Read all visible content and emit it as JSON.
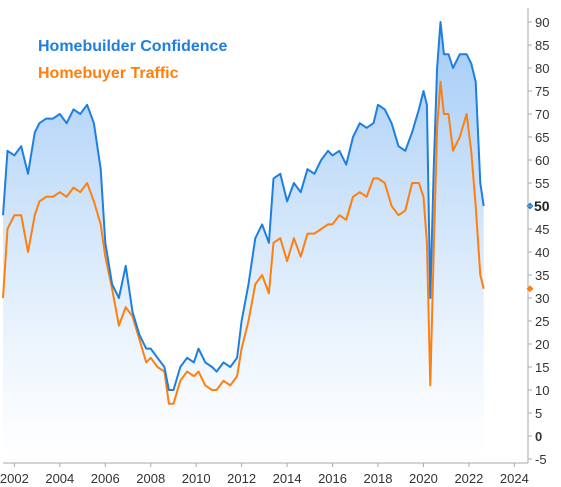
{
  "chart_data": {
    "type": "line",
    "title": "",
    "xlabel": "",
    "ylabel": "",
    "xlim": [
      2001.5,
      2024.6
    ],
    "ylim": [
      -5,
      90
    ],
    "x_ticks": [
      "2002",
      "2004",
      "2006",
      "2008",
      "2010",
      "2012",
      "2014",
      "2016",
      "2018",
      "2020",
      "2022",
      "2024"
    ],
    "y_ticks": [
      "90",
      "85",
      "80",
      "75",
      "70",
      "65",
      "60",
      "55",
      "50",
      "45",
      "40",
      "35",
      "30",
      "25",
      "20",
      "15",
      "10",
      "5",
      "0",
      "-5"
    ],
    "legend_position": "top-left",
    "series": [
      {
        "name": "Homebuilder Confidence",
        "color": "#1f7fe0",
        "last_value": "50",
        "x": [
          2001.5,
          2001.7,
          2002.0,
          2002.3,
          2002.6,
          2002.9,
          2003.1,
          2003.4,
          2003.7,
          2004.0,
          2004.3,
          2004.6,
          2004.9,
          2005.2,
          2005.5,
          2005.8,
          2006.0,
          2006.3,
          2006.6,
          2006.9,
          2007.2,
          2007.5,
          2007.8,
          2008.0,
          2008.3,
          2008.6,
          2008.8,
          2009.0,
          2009.3,
          2009.6,
          2009.9,
          2010.1,
          2010.4,
          2010.7,
          2010.9,
          2011.2,
          2011.5,
          2011.8,
          2012.0,
          2012.3,
          2012.6,
          2012.9,
          2013.2,
          2013.4,
          2013.7,
          2014.0,
          2014.3,
          2014.6,
          2014.9,
          2015.2,
          2015.5,
          2015.8,
          2016.0,
          2016.3,
          2016.6,
          2016.9,
          2017.2,
          2017.5,
          2017.8,
          2018.0,
          2018.3,
          2018.6,
          2018.9,
          2019.2,
          2019.5,
          2019.8,
          2020.0,
          2020.15,
          2020.3,
          2020.45,
          2020.6,
          2020.75,
          2020.9,
          2021.1,
          2021.3,
          2021.6,
          2021.9,
          2022.1,
          2022.3,
          2022.5,
          2022.65
        ],
        "values": [
          48,
          62,
          61,
          63,
          57,
          66,
          68,
          69,
          69,
          70,
          68,
          71,
          70,
          72,
          68,
          58,
          42,
          33,
          30,
          37,
          27,
          22,
          19,
          19,
          17,
          15,
          10,
          10,
          15,
          17,
          16,
          19,
          16,
          15,
          14,
          16,
          15,
          17,
          25,
          33,
          43,
          46,
          42,
          56,
          57,
          51,
          55,
          53,
          58,
          57,
          60,
          62,
          61,
          62,
          59,
          65,
          68,
          67,
          68,
          72,
          71,
          68,
          63,
          62,
          66,
          71,
          75,
          72,
          30,
          58,
          80,
          90,
          83,
          83,
          80,
          83,
          83,
          81,
          77,
          55,
          50
        ]
      },
      {
        "name": "Homebuyer Traffic",
        "color": "#ff7f0e",
        "last_value": "32",
        "x": [
          2001.5,
          2001.7,
          2002.0,
          2002.3,
          2002.6,
          2002.9,
          2003.1,
          2003.4,
          2003.7,
          2004.0,
          2004.3,
          2004.6,
          2004.9,
          2005.2,
          2005.5,
          2005.8,
          2006.0,
          2006.3,
          2006.6,
          2006.9,
          2007.2,
          2007.5,
          2007.8,
          2008.0,
          2008.3,
          2008.6,
          2008.8,
          2009.0,
          2009.3,
          2009.6,
          2009.9,
          2010.1,
          2010.4,
          2010.7,
          2010.9,
          2011.2,
          2011.5,
          2011.8,
          2012.0,
          2012.3,
          2012.6,
          2012.9,
          2013.2,
          2013.4,
          2013.7,
          2014.0,
          2014.3,
          2014.6,
          2014.9,
          2015.2,
          2015.5,
          2015.8,
          2016.0,
          2016.3,
          2016.6,
          2016.9,
          2017.2,
          2017.5,
          2017.8,
          2018.0,
          2018.3,
          2018.6,
          2018.9,
          2019.2,
          2019.5,
          2019.8,
          2020.0,
          2020.15,
          2020.3,
          2020.45,
          2020.6,
          2020.75,
          2020.9,
          2021.1,
          2021.3,
          2021.6,
          2021.9,
          2022.1,
          2022.3,
          2022.5,
          2022.65
        ],
        "values": [
          30,
          45,
          48,
          48,
          40,
          48,
          51,
          52,
          52,
          53,
          52,
          54,
          53,
          55,
          51,
          46,
          39,
          32,
          24,
          28,
          26,
          21,
          16,
          17,
          15,
          14,
          7,
          7,
          12,
          14,
          13,
          14,
          11,
          10,
          10,
          12,
          11,
          13,
          19,
          25,
          33,
          35,
          31,
          42,
          43,
          38,
          43,
          39,
          44,
          44,
          45,
          46,
          46,
          48,
          47,
          52,
          53,
          52,
          56,
          56,
          55,
          50,
          48,
          49,
          55,
          55,
          52,
          42,
          11,
          40,
          67,
          77,
          70,
          70,
          62,
          65,
          70,
          62,
          50,
          35,
          32
        ]
      }
    ]
  }
}
